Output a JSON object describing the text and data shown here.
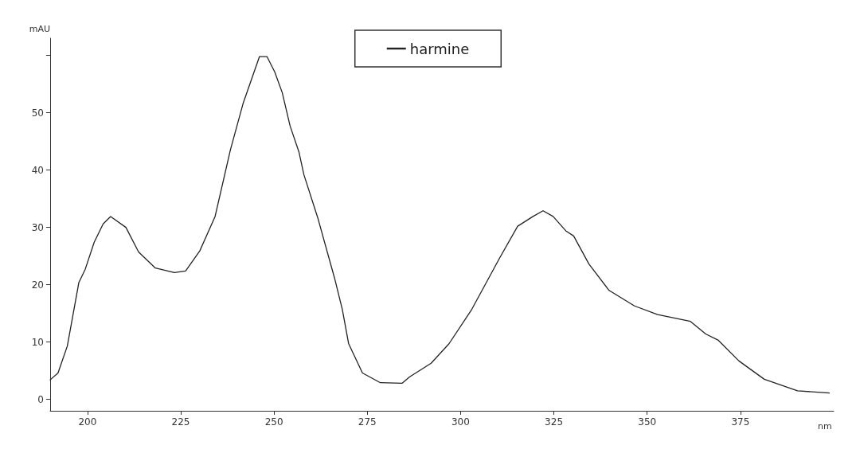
{
  "chart_data": {
    "type": "line",
    "xlabel": "nm",
    "ylabel": "mAU",
    "xlim": [
      190,
      400
    ],
    "xticks": [
      200,
      225,
      250,
      275,
      300,
      325,
      350,
      375
    ],
    "ylim": [
      -2,
      63
    ],
    "yticks": [
      0,
      10,
      20,
      30,
      40,
      50,
      {
        "value": 60,
        "label": null
      }
    ],
    "grid": false,
    "legend": "top",
    "marker": "none",
    "line_style": "solid",
    "series": [
      {
        "name": "harmine",
        "color": "#222222",
        "x": [
          190,
          192.1,
          194.6,
          197.7,
          199.4,
          201.8,
          204.2,
          206.2,
          210.3,
          213.7,
          218.2,
          223.3,
          226.3,
          230.1,
          234.2,
          238.3,
          241.7,
          246.1,
          248.1,
          250.2,
          252.2,
          254.3,
          256.7,
          258,
          261.8,
          266.2,
          268.3,
          270,
          273.7,
          278.5,
          284.3,
          286.3,
          292.1,
          296.9,
          303,
          310.5,
          315.3,
          319.4,
          322.1,
          324.8,
          328.2,
          330.3,
          334.4,
          339.8,
          346.6,
          352.8,
          361.6,
          365.7,
          369.1,
          374.6,
          381.4,
          390.3,
          398.8
        ],
        "values": [
          3.4,
          4.6,
          9.3,
          20.4,
          22.7,
          27.4,
          30.6,
          31.9,
          30,
          25.7,
          22.9,
          22.1,
          22.4,
          25.9,
          31.9,
          43.5,
          51.6,
          59.8,
          59.8,
          57.1,
          53.5,
          47.7,
          43.1,
          39.2,
          31.5,
          21.2,
          15.7,
          9.7,
          4.6,
          2.9,
          2.8,
          3.9,
          6.3,
          9.7,
          15.7,
          24.7,
          30.2,
          31.9,
          32.9,
          31.9,
          29.4,
          28.5,
          23.6,
          19,
          16.3,
          14.8,
          13.6,
          11.4,
          10.3,
          6.7,
          3.5,
          1.5,
          1.1
        ]
      }
    ]
  }
}
